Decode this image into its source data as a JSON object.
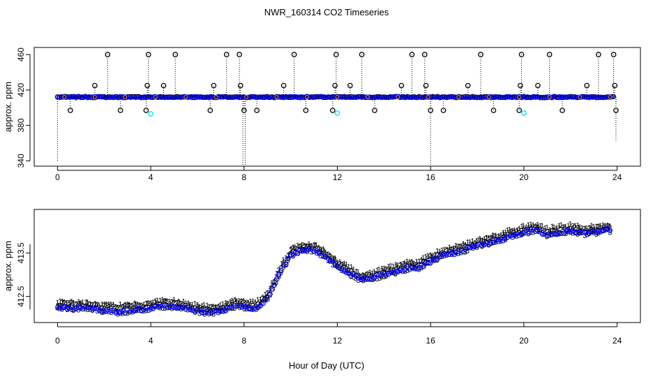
{
  "figure": {
    "title": "NWR_160314  CO2 Timeseries",
    "xlabel": "Hour of Day (UTC)"
  },
  "chart_data": [
    {
      "type": "scatter",
      "name": "top-panel",
      "ylabel": "approx. ppm",
      "xlim": [
        -1,
        25
      ],
      "ylim": [
        334,
        468
      ],
      "xticks": [
        0,
        4,
        8,
        12,
        16,
        20,
        24
      ],
      "yticks": [
        340,
        380,
        420,
        460
      ],
      "baseline_ppm": 412,
      "series": [
        {
          "name": "points (black circles, drop lines)",
          "color": "#000000"
        },
        {
          "name": "blue circles",
          "color": "#0000ff"
        },
        {
          "name": "cyan circles",
          "color": "#00e5e5"
        },
        {
          "name": "orange markers",
          "color": "#e69500"
        }
      ],
      "spikes_high": [
        2.15,
        3.9,
        5.05,
        7.25,
        7.8,
        10.15,
        11.95,
        13.05,
        15.2,
        15.75,
        18.15,
        19.9,
        21.1,
        23.2,
        23.85
      ],
      "spikes_425": [
        1.6,
        3.85,
        4.55,
        6.7,
        7.85,
        9.7,
        11.9,
        12.55,
        14.75,
        15.8,
        17.6,
        19.85,
        20.6,
        22.7,
        23.9
      ],
      "spikes_low": [
        0.55,
        2.7,
        3.8,
        6.55,
        8.0,
        8.55,
        10.65,
        11.8,
        13.6,
        16.0,
        16.55,
        18.7,
        19.8,
        21.65,
        23.95
      ],
      "cyan_points": [
        {
          "x": 4.0,
          "y": 393
        },
        {
          "x": 12.0,
          "y": 394
        },
        {
          "x": 20.0,
          "y": 394
        }
      ],
      "drop_lines": [
        {
          "x": 0.0,
          "y0": 412,
          "y1": 340
        },
        {
          "x": 7.95,
          "y0": 412,
          "y1": 334
        },
        {
          "x": 8.05,
          "y0": 412,
          "y1": 334
        },
        {
          "x": 16.0,
          "y0": 412,
          "y1": 334
        },
        {
          "x": 23.95,
          "y0": 412,
          "y1": 362
        }
      ]
    },
    {
      "type": "scatter",
      "name": "bottom-panel",
      "ylabel": "approx. ppm",
      "xlim": [
        -1,
        25
      ],
      "ylim": [
        411.9,
        414.5
      ],
      "xticks": [
        0,
        4,
        8,
        12,
        16,
        20,
        24
      ],
      "yticks": [
        412.5,
        413.5
      ],
      "series": [
        {
          "name": "1",
          "symbol": "1",
          "color": "#ff0000",
          "offset": 0.08
        },
        {
          "name": "2",
          "symbol": "2",
          "color": "#00cc00",
          "offset": 0.04
        },
        {
          "name": "3",
          "symbol": "3",
          "color": "#0000ff",
          "offset": -0.06
        },
        {
          "name": "o",
          "symbol": "o",
          "color": "#0000ff",
          "offset": -0.05
        }
      ],
      "trend_knots": {
        "x": [
          0,
          0.5,
          1,
          1.5,
          2,
          2.5,
          3,
          3.5,
          4,
          4.5,
          5,
          5.5,
          6,
          6.5,
          7,
          7.5,
          7.8,
          8,
          8.5,
          9,
          9.3,
          9.6,
          10,
          10.5,
          11,
          11.5,
          12,
          12.5,
          13,
          13.5,
          14,
          14.5,
          15,
          15.5,
          16,
          16.5,
          17,
          17.5,
          18,
          18.5,
          19,
          19.5,
          20,
          20.5,
          21,
          21.5,
          22,
          22.5,
          23,
          23.5,
          23.8
        ],
        "y": [
          412.28,
          412.3,
          412.27,
          412.27,
          412.23,
          412.2,
          412.22,
          412.25,
          412.28,
          412.33,
          412.32,
          412.27,
          412.22,
          412.18,
          412.22,
          412.32,
          412.35,
          412.3,
          412.28,
          412.5,
          412.8,
          413.15,
          413.5,
          413.62,
          413.62,
          413.45,
          413.25,
          413.1,
          412.92,
          412.98,
          413.05,
          413.12,
          413.2,
          413.22,
          413.35,
          413.5,
          413.55,
          413.62,
          413.72,
          413.78,
          413.85,
          413.95,
          414.02,
          414.08,
          413.98,
          414.02,
          414.05,
          414.0,
          414.02,
          414.08,
          414.06
        ]
      }
    }
  ]
}
